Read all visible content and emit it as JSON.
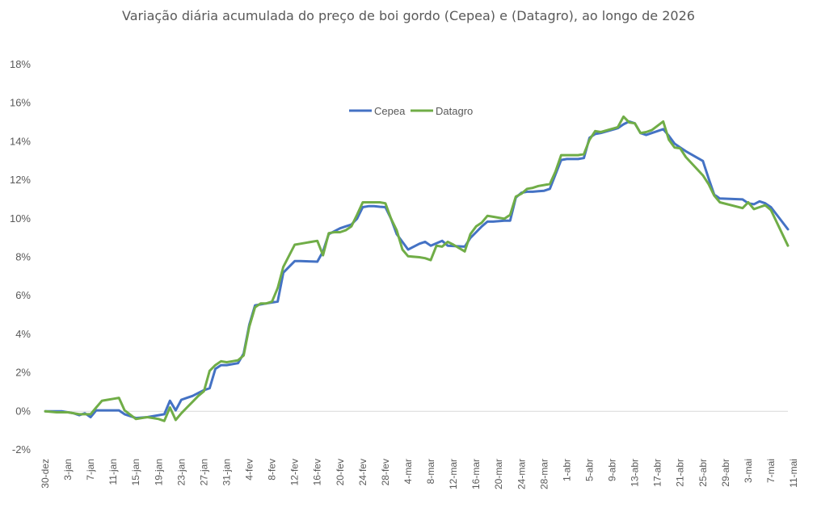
{
  "chart_data": {
    "type": "line",
    "title": "Variação diária acumulada do preço de boi gordo (Cepea) e (Datagro), ao longo de 2026",
    "xlabel": "",
    "ylabel": "",
    "ylim": [
      -2,
      18
    ],
    "y_tick_labels": [
      "-2%",
      "0%",
      "2%",
      "4%",
      "6%",
      "8%",
      "10%",
      "12%",
      "14%",
      "16%",
      "18%"
    ],
    "x_tick_labels": [
      "30-dez",
      "3-jan",
      "7-jan",
      "11-jan",
      "15-jan",
      "19-jan",
      "23-jan",
      "27-jan",
      "31-jan",
      "4-fev",
      "8-fev",
      "12-fev",
      "16-fev",
      "20-fev",
      "24-fev",
      "28-fev",
      "4-mar",
      "8-mar",
      "12-mar",
      "16-mar",
      "20-mar",
      "24-mar",
      "28-mar",
      "1-abr",
      "5-abr",
      "9-abr",
      "13-abr",
      "17-abr",
      "21-abr",
      "25-abr",
      "29-abr",
      "3-mai",
      "7-mai",
      "11-mai"
    ],
    "x_unit": "days since 30-dez",
    "grid": false,
    "legend": "top-center",
    "series": [
      {
        "name": "Cepea",
        "color": "#4472C4",
        "points": [
          [
            0,
            0
          ],
          [
            2,
            0
          ],
          [
            3,
            0
          ],
          [
            5,
            -0.1
          ],
          [
            6,
            -0.2
          ],
          [
            7,
            -0.1
          ],
          [
            8,
            -0.3
          ],
          [
            9,
            0.05
          ],
          [
            10,
            0.05
          ],
          [
            11,
            0.05
          ],
          [
            12,
            0.05
          ],
          [
            13,
            0.05
          ],
          [
            14,
            -0.15
          ],
          [
            16,
            -0.35
          ],
          [
            18,
            -0.3
          ],
          [
            20,
            -0.2
          ],
          [
            21,
            -0.15
          ],
          [
            22,
            0.55
          ],
          [
            23,
            0.05
          ],
          [
            24,
            0.6
          ],
          [
            25,
            0.7
          ],
          [
            26,
            0.8
          ],
          [
            27,
            0.95
          ],
          [
            28,
            1.1
          ],
          [
            29,
            1.2
          ],
          [
            30,
            2.2
          ],
          [
            31,
            2.4
          ],
          [
            32,
            2.4
          ],
          [
            33,
            2.45
          ],
          [
            34,
            2.5
          ],
          [
            35,
            3.0
          ],
          [
            36,
            4.5
          ],
          [
            37,
            5.5
          ],
          [
            38,
            5.55
          ],
          [
            39,
            5.6
          ],
          [
            40,
            5.65
          ],
          [
            41,
            5.7
          ],
          [
            42,
            7.2
          ],
          [
            44,
            7.8
          ],
          [
            45,
            7.8
          ],
          [
            47,
            7.78
          ],
          [
            48,
            7.77
          ],
          [
            49,
            8.3
          ],
          [
            50,
            9.2
          ],
          [
            51,
            9.35
          ],
          [
            52,
            9.5
          ],
          [
            53,
            9.6
          ],
          [
            54,
            9.7
          ],
          [
            55,
            10.0
          ],
          [
            56,
            10.6
          ],
          [
            57,
            10.65
          ],
          [
            58,
            10.65
          ],
          [
            59,
            10.62
          ],
          [
            60,
            10.6
          ],
          [
            61,
            10.0
          ],
          [
            62,
            9.2
          ],
          [
            64,
            8.4
          ],
          [
            66,
            8.7
          ],
          [
            67,
            8.8
          ],
          [
            68,
            8.6
          ],
          [
            70,
            8.85
          ],
          [
            71,
            8.6
          ],
          [
            74,
            8.55
          ],
          [
            75,
            9.0
          ],
          [
            76,
            9.3
          ],
          [
            77,
            9.6
          ],
          [
            78,
            9.85
          ],
          [
            79,
            9.85
          ],
          [
            81,
            9.9
          ],
          [
            82,
            9.9
          ],
          [
            83,
            11.1
          ],
          [
            84,
            11.35
          ],
          [
            85,
            11.4
          ],
          [
            86,
            11.4
          ],
          [
            87,
            11.43
          ],
          [
            88,
            11.45
          ],
          [
            89,
            11.55
          ],
          [
            90,
            12.3
          ],
          [
            91,
            13.05
          ],
          [
            92,
            13.1
          ],
          [
            94,
            13.1
          ],
          [
            95,
            13.15
          ],
          [
            96,
            14.2
          ],
          [
            97,
            14.4
          ],
          [
            98,
            14.45
          ],
          [
            101,
            14.7
          ],
          [
            102,
            14.9
          ],
          [
            103,
            15.05
          ],
          [
            104,
            14.95
          ],
          [
            105,
            14.45
          ],
          [
            106,
            14.35
          ],
          [
            107,
            14.45
          ],
          [
            109,
            14.65
          ],
          [
            110,
            14.3
          ],
          [
            111,
            13.9
          ],
          [
            112,
            13.7
          ],
          [
            113,
            13.5
          ],
          [
            116,
            13.0
          ],
          [
            117,
            12.1
          ],
          [
            118,
            11.25
          ],
          [
            119,
            11.05
          ],
          [
            123,
            11.0
          ],
          [
            124,
            10.8
          ],
          [
            125,
            10.75
          ],
          [
            126,
            10.9
          ],
          [
            127,
            10.8
          ],
          [
            128,
            10.6
          ],
          [
            131,
            9.45
          ]
        ]
      },
      {
        "name": "Datagro",
        "color": "#70AD47",
        "points": [
          [
            0,
            0
          ],
          [
            2,
            -0.05
          ],
          [
            4,
            -0.05
          ],
          [
            6,
            -0.15
          ],
          [
            8,
            -0.15
          ],
          [
            9,
            0.2
          ],
          [
            10,
            0.55
          ],
          [
            11,
            0.6
          ],
          [
            12,
            0.65
          ],
          [
            13,
            0.7
          ],
          [
            14,
            0.05
          ],
          [
            16,
            -0.4
          ],
          [
            18,
            -0.3
          ],
          [
            20,
            -0.4
          ],
          [
            21,
            -0.5
          ],
          [
            22,
            0.2
          ],
          [
            23,
            -0.45
          ],
          [
            24,
            -0.1
          ],
          [
            25,
            0.2
          ],
          [
            26,
            0.5
          ],
          [
            27,
            0.8
          ],
          [
            28,
            1.05
          ],
          [
            29,
            2.1
          ],
          [
            30,
            2.4
          ],
          [
            31,
            2.6
          ],
          [
            32,
            2.55
          ],
          [
            33,
            2.6
          ],
          [
            34,
            2.65
          ],
          [
            35,
            2.9
          ],
          [
            36,
            4.4
          ],
          [
            37,
            5.4
          ],
          [
            38,
            5.6
          ],
          [
            39,
            5.6
          ],
          [
            40,
            5.7
          ],
          [
            41,
            6.4
          ],
          [
            42,
            7.5
          ],
          [
            44,
            8.65
          ],
          [
            45,
            8.7
          ],
          [
            47,
            8.8
          ],
          [
            48,
            8.85
          ],
          [
            49,
            8.1
          ],
          [
            50,
            9.25
          ],
          [
            51,
            9.3
          ],
          [
            52,
            9.3
          ],
          [
            53,
            9.4
          ],
          [
            54,
            9.6
          ],
          [
            55,
            10.2
          ],
          [
            56,
            10.85
          ],
          [
            57,
            10.85
          ],
          [
            59,
            10.85
          ],
          [
            60,
            10.8
          ],
          [
            61,
            10.0
          ],
          [
            62,
            9.4
          ],
          [
            63,
            8.4
          ],
          [
            64,
            8.05
          ],
          [
            66,
            8.0
          ],
          [
            67,
            7.95
          ],
          [
            68,
            7.85
          ],
          [
            69,
            8.6
          ],
          [
            70,
            8.55
          ],
          [
            71,
            8.8
          ],
          [
            72,
            8.65
          ],
          [
            74,
            8.3
          ],
          [
            75,
            9.2
          ],
          [
            76,
            9.6
          ],
          [
            77,
            9.8
          ],
          [
            78,
            10.15
          ],
          [
            79,
            10.1
          ],
          [
            81,
            10.0
          ],
          [
            82,
            10.2
          ],
          [
            83,
            11.15
          ],
          [
            84,
            11.3
          ],
          [
            85,
            11.55
          ],
          [
            86,
            11.6
          ],
          [
            87,
            11.7
          ],
          [
            89,
            11.8
          ],
          [
            90,
            12.45
          ],
          [
            91,
            13.3
          ],
          [
            92,
            13.3
          ],
          [
            94,
            13.3
          ],
          [
            95,
            13.35
          ],
          [
            96,
            14.1
          ],
          [
            97,
            14.55
          ],
          [
            98,
            14.5
          ],
          [
            101,
            14.75
          ],
          [
            102,
            15.3
          ],
          [
            103,
            15.0
          ],
          [
            104,
            14.95
          ],
          [
            105,
            14.45
          ],
          [
            106,
            14.5
          ],
          [
            107,
            14.6
          ],
          [
            109,
            15.05
          ],
          [
            110,
            14.1
          ],
          [
            111,
            13.7
          ],
          [
            112,
            13.65
          ],
          [
            113,
            13.2
          ],
          [
            116,
            12.25
          ],
          [
            117,
            11.8
          ],
          [
            118,
            11.2
          ],
          [
            119,
            10.85
          ],
          [
            123,
            10.55
          ],
          [
            124,
            10.85
          ],
          [
            125,
            10.5
          ],
          [
            126,
            10.6
          ],
          [
            127,
            10.7
          ],
          [
            128,
            10.45
          ],
          [
            131,
            8.6
          ]
        ]
      }
    ]
  }
}
